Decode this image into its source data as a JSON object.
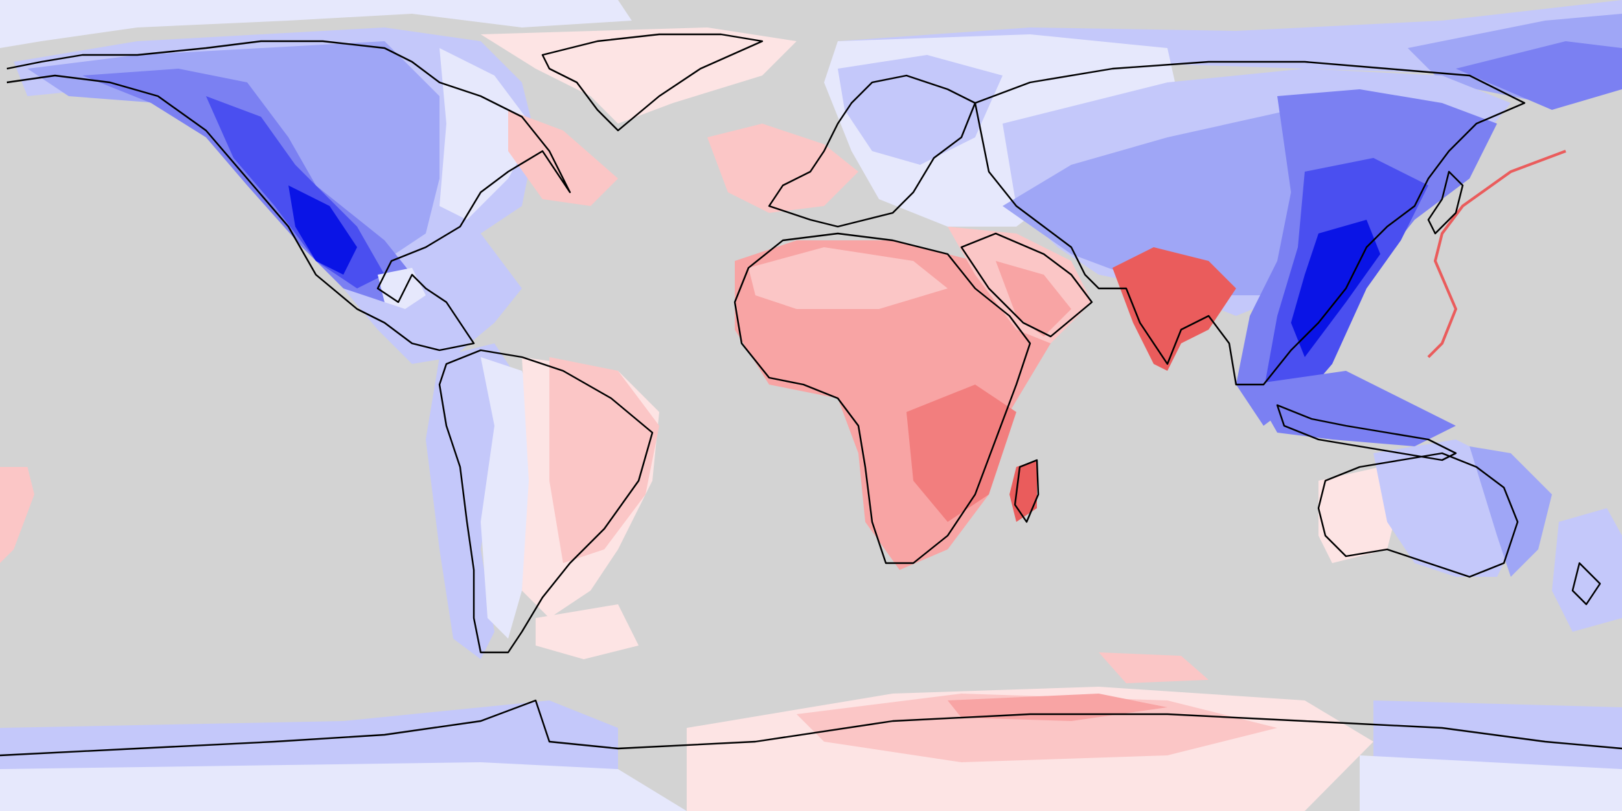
{
  "map": {
    "projection": "equirectangular",
    "extent": {
      "lon": [
        -180,
        180
      ],
      "lat": [
        -90,
        90
      ]
    },
    "background_color": "#d3d3d3",
    "coastline_color": "#000000",
    "color_scale": {
      "negative": [
        "#e6e8fc",
        "#c4c8fa",
        "#9fa6f6",
        "#7b80f2",
        "#4a4ff0",
        "#0a14e6"
      ],
      "positive": [
        "#fde4e4",
        "#fbc6c6",
        "#f8a4a4",
        "#f27e7e",
        "#ea5c5c"
      ]
    },
    "features": [
      {
        "region": "north-america",
        "sign": "negative"
      },
      {
        "region": "south-america",
        "sign": "mixed"
      },
      {
        "region": "greenland",
        "sign": "positive"
      },
      {
        "region": "europe",
        "sign": "mixed"
      },
      {
        "region": "africa",
        "sign": "positive"
      },
      {
        "region": "arabia",
        "sign": "positive"
      },
      {
        "region": "india",
        "sign": "positive"
      },
      {
        "region": "asia",
        "sign": "negative"
      },
      {
        "region": "australia",
        "sign": "mixed"
      },
      {
        "region": "antarctica",
        "sign": "mixed"
      }
    ]
  }
}
